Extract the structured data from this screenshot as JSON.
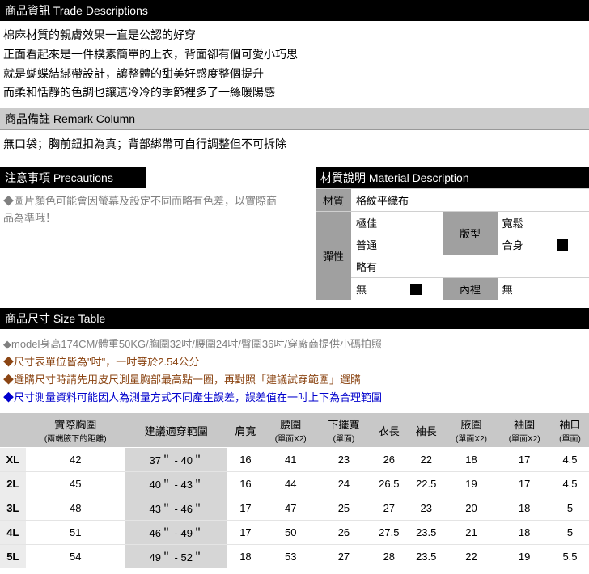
{
  "colors": {
    "header_bg": "#000000",
    "header_fg": "#ffffff",
    "gray_bg": "#cccccc",
    "note_gray": "#808080",
    "note_brown": "#8b4513",
    "note_blue": "#0000cd",
    "mat_label_bg": "#a0a0a0",
    "size_th_bg": "#c8c8c8",
    "range_bg": "#d6d6d6"
  },
  "trade": {
    "header": "商品資訊 Trade Descriptions",
    "lines": {
      "l1": "棉麻材質的親膚效果一直是公認的好穿",
      "l2": "正面看起來是一件樸素簡單的上衣，背面卻有個可愛小巧思",
      "l3": "就是蝴蝶結綁帶設計，讓整體的甜美好感度整個提升",
      "l4": "而柔和恬靜的色調也讓這冷冷的季節裡多了一絲暖陽感"
    },
    "remark_header": "商品備註 Remark Column",
    "remark_body": "無口袋；胸前鈕扣為真；背部綁帶可自行調整但不可拆除"
  },
  "precaution": {
    "header": "注意事項 Precautions",
    "text": "◆圖片顏色可能會因螢幕及設定不同而略有色差，以實際商品為準哦！"
  },
  "material": {
    "header": "材質說明 Material Description",
    "label_material": "材質",
    "value_material": "格紋平織布",
    "label_elastic": "彈性",
    "elastic_opts": {
      "o1": "極佳",
      "o2": "普通",
      "o3": "略有",
      "o4": "無"
    },
    "label_fit": "版型",
    "fit_opts": {
      "o1": "寬鬆",
      "o2": "合身"
    },
    "label_lining": "內裡",
    "lining_value": "無"
  },
  "size": {
    "header": "商品尺寸 Size Table",
    "notes": {
      "n1": "model身高174CM/體重50KG/胸圍32吋/腰圍24吋/臀圍36吋/穿廠商提供小碼拍照",
      "n2": "尺寸表單位皆為\"吋\"，一吋等於2.54公分",
      "n3": "選購尺寸時請先用皮尺測量胸部最高點一圈，再對照「建議試穿範圍」選購",
      "n4": "尺寸測量資料可能因人為測量方式不同產生誤差，誤差值在一吋上下為合理範圍"
    },
    "columns": {
      "c0": "",
      "c1": "實際胸圍",
      "c1s": "(兩端腋下的距離)",
      "c2": "建議適穿範圍",
      "c3": "肩寬",
      "c4": "腰圍",
      "c4s": "(單面X2)",
      "c5": "下擺寬",
      "c5s": "(單面)",
      "c6": "衣長",
      "c7": "袖長",
      "c8": "腋圍",
      "c8s": "(單面X2)",
      "c9": "袖圍",
      "c9s": "(單面X2)",
      "c10": "袖口",
      "c10s": "(單面)"
    },
    "rows": {
      "r0": {
        "sz": "XL",
        "bust": "42",
        "range": "37＂ - 40＂",
        "shoulder": "16",
        "waist": "41",
        "hem": "23",
        "len": "26",
        "sleeve": "22",
        "arm": "18",
        "scirc": "17",
        "cuff": "4.5"
      },
      "r1": {
        "sz": "2L",
        "bust": "45",
        "range": "40＂ - 43＂",
        "shoulder": "16",
        "waist": "44",
        "hem": "24",
        "len": "26.5",
        "sleeve": "22.5",
        "arm": "19",
        "scirc": "17",
        "cuff": "4.5"
      },
      "r2": {
        "sz": "3L",
        "bust": "48",
        "range": "43＂ - 46＂",
        "shoulder": "17",
        "waist": "47",
        "hem": "25",
        "len": "27",
        "sleeve": "23",
        "arm": "20",
        "scirc": "18",
        "cuff": "5"
      },
      "r3": {
        "sz": "4L",
        "bust": "51",
        "range": "46＂ - 49＂",
        "shoulder": "17",
        "waist": "50",
        "hem": "26",
        "len": "27.5",
        "sleeve": "23.5",
        "arm": "21",
        "scirc": "18",
        "cuff": "5"
      },
      "r4": {
        "sz": "5L",
        "bust": "54",
        "range": "49＂ - 52＂",
        "shoulder": "18",
        "waist": "53",
        "hem": "27",
        "len": "28",
        "sleeve": "23.5",
        "arm": "22",
        "scirc": "19",
        "cuff": "5.5"
      }
    }
  }
}
